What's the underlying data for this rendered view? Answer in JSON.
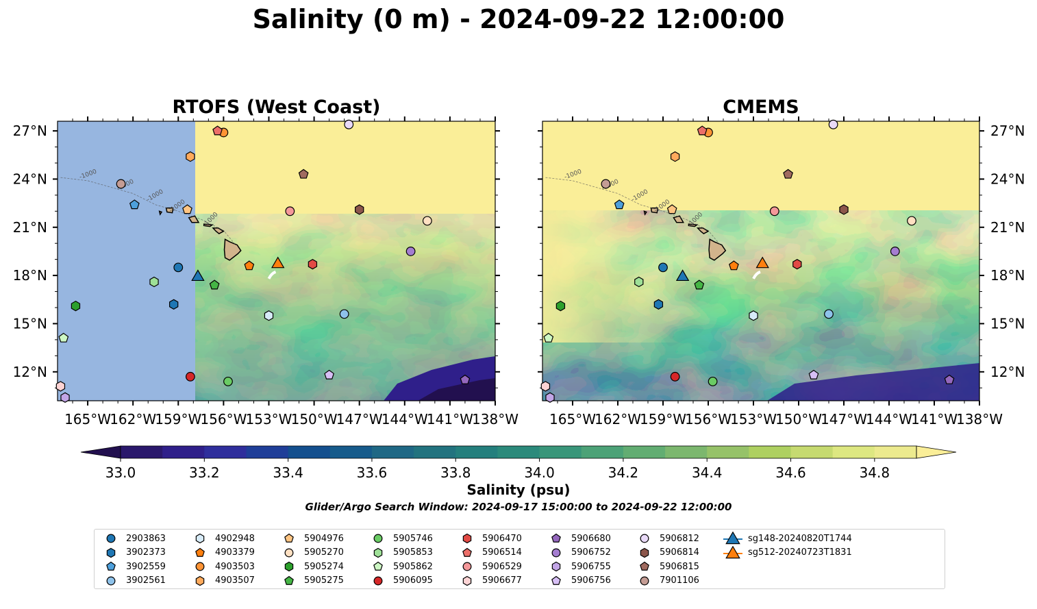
{
  "title": "Salinity (0 m) - 2024-09-22 12:00:00",
  "panels": [
    {
      "title": "RTOFS (West Coast)"
    },
    {
      "title": "CMEMS"
    }
  ],
  "axes": {
    "lon_ticks": [
      "165°W",
      "162°W",
      "159°W",
      "156°W",
      "153°W",
      "150°W",
      "147°W",
      "144°W",
      "141°W",
      "138°W"
    ],
    "lat_ticks": [
      "27°N",
      "24°N",
      "21°N",
      "18°N",
      "15°N",
      "12°N"
    ],
    "lon_range": [
      -167.0,
      -138.0
    ],
    "lat_range": [
      10.2,
      27.6
    ]
  },
  "colorbar": {
    "label": "Salinity (psu)",
    "min": 33.0,
    "max": 34.9,
    "step": 0.1,
    "tick_labels": [
      "33.0",
      "33.2",
      "33.4",
      "33.6",
      "33.8",
      "34.0",
      "34.2",
      "34.4",
      "34.6",
      "34.8"
    ],
    "colors": [
      "#2a186c",
      "#2f1f8a",
      "#2f2e9c",
      "#1f3e98",
      "#134f8e",
      "#165b8b",
      "#1f6885",
      "#22737f",
      "#247f7d",
      "#2b8a7b",
      "#39967a",
      "#4ca277",
      "#62ad72",
      "#7cb76e",
      "#96c269",
      "#aed061",
      "#c6da70",
      "#dde781",
      "#ecea8e"
    ],
    "over_color": "#faee98",
    "under_color": "#22104f"
  },
  "search_window": "Glider/Argo Search Window: 2024-09-17 15:00:00 to 2024-09-22 12:00:00",
  "bathymetry_labels": [
    "-1000"
  ],
  "floats": [
    {
      "id": "2903863",
      "marker": "circle",
      "color": "#1f77b4",
      "lon": -159.0,
      "lat": 18.5
    },
    {
      "id": "3902373",
      "marker": "hexagon",
      "color": "#1f77b4",
      "lon": -159.3,
      "lat": 16.2
    },
    {
      "id": "3902559",
      "marker": "pentagon",
      "color": "#4ea0dc",
      "lon": -161.9,
      "lat": 22.4
    },
    {
      "id": "3902561",
      "marker": "circle",
      "color": "#8ec2ea",
      "lon": -148.0,
      "lat": 15.6
    },
    {
      "id": "4902948",
      "marker": "hexagon",
      "color": "#d7ebf8",
      "lon": -153.0,
      "lat": 15.5
    },
    {
      "id": "4903379",
      "marker": "pentagon",
      "color": "#ff7f0e",
      "lon": -154.3,
      "lat": 18.6
    },
    {
      "id": "4903503",
      "marker": "circle",
      "color": "#ff9435",
      "lon": -156.0,
      "lat": 26.9
    },
    {
      "id": "4903507",
      "marker": "hexagon",
      "color": "#ffaa5c",
      "lon": -158.2,
      "lat": 25.4
    },
    {
      "id": "5904976",
      "marker": "pentagon",
      "color": "#ffc583",
      "lon": -158.4,
      "lat": 22.1
    },
    {
      "id": "5905270",
      "marker": "circle",
      "color": "#ffe0c2",
      "lon": -142.5,
      "lat": 21.4
    },
    {
      "id": "5905274",
      "marker": "hexagon",
      "color": "#2ca02c",
      "lon": -165.8,
      "lat": 16.1
    },
    {
      "id": "5905275",
      "marker": "pentagon",
      "color": "#45b545",
      "lon": -156.6,
      "lat": 17.4
    },
    {
      "id": "5905746",
      "marker": "circle",
      "color": "#6acc64",
      "lon": -155.7,
      "lat": 11.4
    },
    {
      "id": "5905853",
      "marker": "hexagon",
      "color": "#9ee097",
      "lon": -160.6,
      "lat": 17.6
    },
    {
      "id": "5905862",
      "marker": "pentagon",
      "color": "#cdf7c4",
      "lon": -166.6,
      "lat": 14.1
    },
    {
      "id": "5906095",
      "marker": "circle",
      "color": "#d62728",
      "lon": -158.2,
      "lat": 11.7
    },
    {
      "id": "5906470",
      "marker": "hexagon",
      "color": "#e24a45",
      "lon": -150.1,
      "lat": 18.7
    },
    {
      "id": "5906514",
      "marker": "pentagon",
      "color": "#ec6f69",
      "lon": -156.4,
      "lat": 27.0
    },
    {
      "id": "5906529",
      "marker": "circle",
      "color": "#f4989a",
      "lon": -151.6,
      "lat": 22.0
    },
    {
      "id": "5906677",
      "marker": "hexagon",
      "color": "#fcd3d4",
      "lon": -166.8,
      "lat": 11.1
    },
    {
      "id": "5906680",
      "marker": "pentagon",
      "color": "#9467bd",
      "lon": -140.0,
      "lat": 11.5
    },
    {
      "id": "5906752",
      "marker": "circle",
      "color": "#a47dd0",
      "lon": -143.6,
      "lat": 19.5
    },
    {
      "id": "5906755",
      "marker": "hexagon",
      "color": "#c2a5e6",
      "lon": -166.5,
      "lat": 10.4
    },
    {
      "id": "5906756",
      "marker": "pentagon",
      "color": "#d7bff5",
      "lon": -149.0,
      "lat": 11.8
    },
    {
      "id": "5906812",
      "marker": "circle",
      "color": "#e9daf8",
      "lon": -147.7,
      "lat": 27.4
    },
    {
      "id": "5906814",
      "marker": "hexagon",
      "color": "#8c564b",
      "lon": -147.0,
      "lat": 22.1
    },
    {
      "id": "5906815",
      "marker": "pentagon",
      "color": "#a06b60",
      "lon": -150.7,
      "lat": 24.3
    },
    {
      "id": "7901106",
      "marker": "circle",
      "color": "#c49c94",
      "lon": -162.8,
      "lat": 23.7
    }
  ],
  "gliders": [
    {
      "id": "sg148-20240820T1744",
      "marker": "triangle",
      "color": "#1f77b4",
      "lon": -157.7,
      "lat": 17.9
    },
    {
      "id": "sg512-20240723T1831",
      "marker": "triangle",
      "color": "#ff7f0e",
      "lon": -152.4,
      "lat": 18.7
    }
  ]
}
